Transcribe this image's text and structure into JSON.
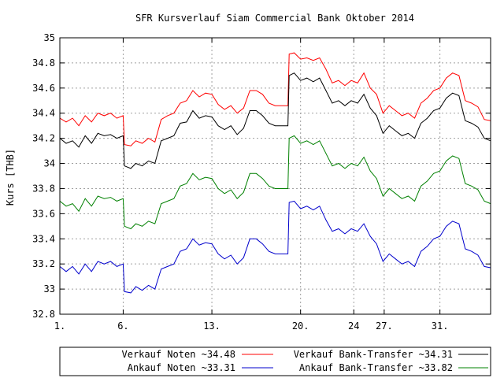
{
  "chart_data": {
    "type": "line",
    "title": "SFR Kursverlauf Siam Commercial Bank Oktober 2014",
    "ylabel": "Kurs [THB]",
    "xlabel": "",
    "ylim": [
      32.8,
      35
    ],
    "xlim": [
      1,
      35
    ],
    "grid": true,
    "legend_position": "bottom",
    "yticks": [
      "32.8",
      "33",
      "33.2",
      "33.4",
      "33.6",
      "33.8",
      "34",
      "34.2",
      "34.4",
      "34.6",
      "34.8",
      "35"
    ],
    "xticks": [
      {
        "x": 1,
        "label": "1."
      },
      {
        "x": 6,
        "label": "6."
      },
      {
        "x": 13,
        "label": "13."
      },
      {
        "x": 20,
        "label": "20."
      },
      {
        "x": 24.2,
        "label": "24"
      },
      {
        "x": 26.6,
        "label": "27."
      },
      {
        "x": 31,
        "label": "31."
      }
    ],
    "series": [
      {
        "name": "Verkauf Noten ~34.48",
        "color": "#ff0000",
        "points": [
          [
            1,
            34.36
          ],
          [
            1.5,
            34.33
          ],
          [
            2,
            34.36
          ],
          [
            2.5,
            34.3
          ],
          [
            3,
            34.38
          ],
          [
            3.5,
            34.33
          ],
          [
            4,
            34.4
          ],
          [
            4.5,
            34.38
          ],
          [
            5,
            34.4
          ],
          [
            5.5,
            34.36
          ],
          [
            6,
            34.38
          ],
          [
            6.1,
            34.15
          ],
          [
            6.6,
            34.14
          ],
          [
            7,
            34.18
          ],
          [
            7.5,
            34.16
          ],
          [
            8,
            34.2
          ],
          [
            8.5,
            34.17
          ],
          [
            9,
            34.35
          ],
          [
            9.5,
            34.38
          ],
          [
            10,
            34.4
          ],
          [
            10.5,
            34.48
          ],
          [
            11,
            34.5
          ],
          [
            11.5,
            34.58
          ],
          [
            12,
            34.53
          ],
          [
            12.5,
            34.56
          ],
          [
            13,
            34.55
          ],
          [
            13.5,
            34.47
          ],
          [
            14,
            34.43
          ],
          [
            14.5,
            34.46
          ],
          [
            15,
            34.4
          ],
          [
            15.5,
            34.44
          ],
          [
            16,
            34.58
          ],
          [
            16.5,
            34.58
          ],
          [
            17,
            34.55
          ],
          [
            17.5,
            34.48
          ],
          [
            18,
            34.46
          ],
          [
            18.5,
            34.46
          ],
          [
            19,
            34.46
          ],
          [
            19.1,
            34.87
          ],
          [
            19.5,
            34.88
          ],
          [
            20,
            34.83
          ],
          [
            20.5,
            34.84
          ],
          [
            21,
            34.82
          ],
          [
            21.5,
            34.84
          ],
          [
            22,
            34.75
          ],
          [
            22.5,
            34.64
          ],
          [
            23,
            34.66
          ],
          [
            23.5,
            34.62
          ],
          [
            24,
            34.66
          ],
          [
            24.5,
            34.64
          ],
          [
            25,
            34.72
          ],
          [
            25.5,
            34.6
          ],
          [
            26,
            34.55
          ],
          [
            26.5,
            34.4
          ],
          [
            27,
            34.46
          ],
          [
            27.5,
            34.42
          ],
          [
            28,
            34.38
          ],
          [
            28.5,
            34.4
          ],
          [
            29,
            34.36
          ],
          [
            29.5,
            34.48
          ],
          [
            30,
            34.52
          ],
          [
            30.5,
            34.58
          ],
          [
            31,
            34.6
          ],
          [
            31.5,
            34.68
          ],
          [
            32,
            34.72
          ],
          [
            32.5,
            34.7
          ],
          [
            33,
            34.5
          ],
          [
            33.5,
            34.48
          ],
          [
            34,
            34.45
          ],
          [
            34.5,
            34.35
          ],
          [
            35,
            34.34
          ]
        ]
      },
      {
        "name": "Verkauf Bank-Transfer ~34.31",
        "color": "#000000",
        "points": [
          [
            1,
            34.2
          ],
          [
            1.5,
            34.16
          ],
          [
            2,
            34.18
          ],
          [
            2.5,
            34.13
          ],
          [
            3,
            34.22
          ],
          [
            3.5,
            34.16
          ],
          [
            4,
            34.24
          ],
          [
            4.5,
            34.22
          ],
          [
            5,
            34.23
          ],
          [
            5.5,
            34.2
          ],
          [
            6,
            34.22
          ],
          [
            6.1,
            33.98
          ],
          [
            6.6,
            33.96
          ],
          [
            7,
            34.0
          ],
          [
            7.5,
            33.98
          ],
          [
            8,
            34.02
          ],
          [
            8.5,
            34.0
          ],
          [
            9,
            34.18
          ],
          [
            9.5,
            34.2
          ],
          [
            10,
            34.22
          ],
          [
            10.5,
            34.32
          ],
          [
            11,
            34.33
          ],
          [
            11.5,
            34.42
          ],
          [
            12,
            34.36
          ],
          [
            12.5,
            34.38
          ],
          [
            13,
            34.37
          ],
          [
            13.5,
            34.3
          ],
          [
            14,
            34.27
          ],
          [
            14.5,
            34.3
          ],
          [
            15,
            34.23
          ],
          [
            15.5,
            34.28
          ],
          [
            16,
            34.42
          ],
          [
            16.5,
            34.42
          ],
          [
            17,
            34.38
          ],
          [
            17.5,
            34.32
          ],
          [
            18,
            34.3
          ],
          [
            18.5,
            34.3
          ],
          [
            19,
            34.3
          ],
          [
            19.1,
            34.7
          ],
          [
            19.5,
            34.72
          ],
          [
            20,
            34.66
          ],
          [
            20.5,
            34.68
          ],
          [
            21,
            34.65
          ],
          [
            21.5,
            34.68
          ],
          [
            22,
            34.58
          ],
          [
            22.5,
            34.48
          ],
          [
            23,
            34.5
          ],
          [
            23.5,
            34.46
          ],
          [
            24,
            34.5
          ],
          [
            24.5,
            34.48
          ],
          [
            25,
            34.55
          ],
          [
            25.5,
            34.44
          ],
          [
            26,
            34.38
          ],
          [
            26.5,
            34.24
          ],
          [
            27,
            34.3
          ],
          [
            27.5,
            34.26
          ],
          [
            28,
            34.22
          ],
          [
            28.5,
            34.24
          ],
          [
            29,
            34.2
          ],
          [
            29.5,
            34.32
          ],
          [
            30,
            34.36
          ],
          [
            30.5,
            34.42
          ],
          [
            31,
            34.44
          ],
          [
            31.5,
            34.52
          ],
          [
            32,
            34.56
          ],
          [
            32.5,
            34.54
          ],
          [
            33,
            34.34
          ],
          [
            33.5,
            34.32
          ],
          [
            34,
            34.29
          ],
          [
            34.5,
            34.2
          ],
          [
            35,
            34.18
          ]
        ]
      },
      {
        "name": "Ankauf Noten ~33.31",
        "color": "#0000cc",
        "points": [
          [
            1,
            33.18
          ],
          [
            1.5,
            33.14
          ],
          [
            2,
            33.18
          ],
          [
            2.5,
            33.12
          ],
          [
            3,
            33.2
          ],
          [
            3.5,
            33.14
          ],
          [
            4,
            33.22
          ],
          [
            4.5,
            33.2
          ],
          [
            5,
            33.22
          ],
          [
            5.5,
            33.18
          ],
          [
            6,
            33.2
          ],
          [
            6.1,
            32.98
          ],
          [
            6.6,
            32.97
          ],
          [
            7,
            33.02
          ],
          [
            7.5,
            32.99
          ],
          [
            8,
            33.03
          ],
          [
            8.5,
            33.0
          ],
          [
            9,
            33.16
          ],
          [
            9.5,
            33.18
          ],
          [
            10,
            33.2
          ],
          [
            10.5,
            33.3
          ],
          [
            11,
            33.32
          ],
          [
            11.5,
            33.4
          ],
          [
            12,
            33.35
          ],
          [
            12.5,
            33.37
          ],
          [
            13,
            33.36
          ],
          [
            13.5,
            33.28
          ],
          [
            14,
            33.24
          ],
          [
            14.5,
            33.27
          ],
          [
            15,
            33.2
          ],
          [
            15.5,
            33.25
          ],
          [
            16,
            33.4
          ],
          [
            16.5,
            33.4
          ],
          [
            17,
            33.36
          ],
          [
            17.5,
            33.3
          ],
          [
            18,
            33.28
          ],
          [
            18.5,
            33.28
          ],
          [
            19,
            33.28
          ],
          [
            19.1,
            33.69
          ],
          [
            19.5,
            33.7
          ],
          [
            20,
            33.64
          ],
          [
            20.5,
            33.66
          ],
          [
            21,
            33.63
          ],
          [
            21.5,
            33.66
          ],
          [
            22,
            33.55
          ],
          [
            22.5,
            33.46
          ],
          [
            23,
            33.48
          ],
          [
            23.5,
            33.44
          ],
          [
            24,
            33.48
          ],
          [
            24.5,
            33.46
          ],
          [
            25,
            33.52
          ],
          [
            25.5,
            33.42
          ],
          [
            26,
            33.36
          ],
          [
            26.5,
            33.22
          ],
          [
            27,
            33.28
          ],
          [
            27.5,
            33.24
          ],
          [
            28,
            33.2
          ],
          [
            28.5,
            33.22
          ],
          [
            29,
            33.18
          ],
          [
            29.5,
            33.3
          ],
          [
            30,
            33.34
          ],
          [
            30.5,
            33.4
          ],
          [
            31,
            33.42
          ],
          [
            31.5,
            33.5
          ],
          [
            32,
            33.54
          ],
          [
            32.5,
            33.52
          ],
          [
            33,
            33.32
          ],
          [
            33.5,
            33.3
          ],
          [
            34,
            33.27
          ],
          [
            34.5,
            33.18
          ],
          [
            35,
            33.17
          ]
        ]
      },
      {
        "name": "Ankauf Bank-Transfer ~33.82",
        "color": "#008000",
        "points": [
          [
            1,
            33.7
          ],
          [
            1.5,
            33.66
          ],
          [
            2,
            33.68
          ],
          [
            2.5,
            33.62
          ],
          [
            3,
            33.72
          ],
          [
            3.5,
            33.66
          ],
          [
            4,
            33.74
          ],
          [
            4.5,
            33.72
          ],
          [
            5,
            33.73
          ],
          [
            5.5,
            33.7
          ],
          [
            6,
            33.72
          ],
          [
            6.1,
            33.5
          ],
          [
            6.6,
            33.48
          ],
          [
            7,
            33.52
          ],
          [
            7.5,
            33.5
          ],
          [
            8,
            33.54
          ],
          [
            8.5,
            33.52
          ],
          [
            9,
            33.68
          ],
          [
            9.5,
            33.7
          ],
          [
            10,
            33.72
          ],
          [
            10.5,
            33.82
          ],
          [
            11,
            33.84
          ],
          [
            11.5,
            33.92
          ],
          [
            12,
            33.87
          ],
          [
            12.5,
            33.89
          ],
          [
            13,
            33.88
          ],
          [
            13.5,
            33.8
          ],
          [
            14,
            33.76
          ],
          [
            14.5,
            33.79
          ],
          [
            15,
            33.72
          ],
          [
            15.5,
            33.77
          ],
          [
            16,
            33.92
          ],
          [
            16.5,
            33.92
          ],
          [
            17,
            33.88
          ],
          [
            17.5,
            33.82
          ],
          [
            18,
            33.8
          ],
          [
            18.5,
            33.8
          ],
          [
            19,
            33.8
          ],
          [
            19.1,
            34.2
          ],
          [
            19.5,
            34.22
          ],
          [
            20,
            34.16
          ],
          [
            20.5,
            34.18
          ],
          [
            21,
            34.15
          ],
          [
            21.5,
            34.18
          ],
          [
            22,
            34.08
          ],
          [
            22.5,
            33.98
          ],
          [
            23,
            34.0
          ],
          [
            23.5,
            33.96
          ],
          [
            24,
            34.0
          ],
          [
            24.5,
            33.98
          ],
          [
            25,
            34.05
          ],
          [
            25.5,
            33.94
          ],
          [
            26,
            33.88
          ],
          [
            26.5,
            33.74
          ],
          [
            27,
            33.8
          ],
          [
            27.5,
            33.76
          ],
          [
            28,
            33.72
          ],
          [
            28.5,
            33.74
          ],
          [
            29,
            33.7
          ],
          [
            29.5,
            33.82
          ],
          [
            30,
            33.86
          ],
          [
            30.5,
            33.92
          ],
          [
            31,
            33.94
          ],
          [
            31.5,
            34.02
          ],
          [
            32,
            34.06
          ],
          [
            32.5,
            34.04
          ],
          [
            33,
            33.84
          ],
          [
            33.5,
            33.82
          ],
          [
            34,
            33.79
          ],
          [
            34.5,
            33.7
          ],
          [
            35,
            33.68
          ]
        ]
      }
    ]
  }
}
